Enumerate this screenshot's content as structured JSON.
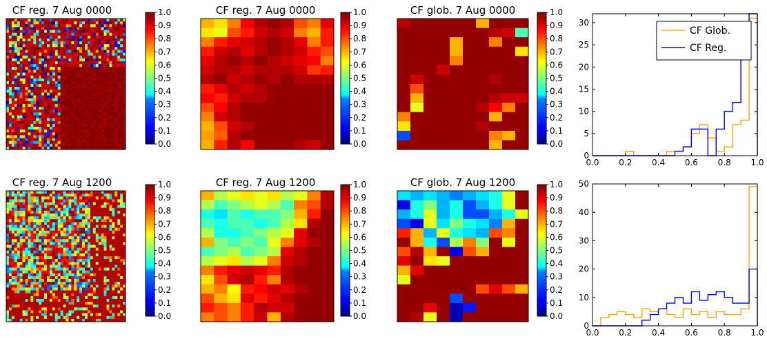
{
  "colors": {
    "glob": "#FFA500",
    "reg": "#0000FF",
    "colormap": "jet"
  },
  "colorbar_ticks": [
    "0.0",
    "0.1",
    "0.2",
    "0.3",
    "0.4",
    "0.5",
    "0.6",
    "0.7",
    "0.8",
    "0.9",
    "1.0"
  ],
  "rows": [
    {
      "titles": {
        "hires": "CF reg. 7 Aug 0000",
        "reg": "CF reg. 7 Aug 0000",
        "glob": "CF glob. 7 Aug 0000"
      },
      "reg_grid": [
        [
          0.7,
          0.65,
          0.75,
          0.88,
          0.95,
          0.98,
          0.95,
          0.8,
          0.75,
          0.9
        ],
        [
          0.65,
          0.6,
          0.8,
          0.85,
          0.92,
          0.95,
          0.92,
          0.75,
          0.7,
          0.85
        ],
        [
          0.75,
          0.85,
          0.9,
          0.92,
          0.95,
          0.98,
          0.95,
          0.9,
          0.75,
          0.85
        ],
        [
          0.85,
          0.92,
          0.95,
          0.9,
          0.95,
          0.98,
          0.95,
          0.92,
          0.85,
          0.8
        ],
        [
          0.9,
          0.95,
          0.98,
          0.95,
          0.98,
          0.95,
          0.92,
          0.9,
          0.88,
          0.75
        ],
        [
          0.92,
          0.95,
          0.95,
          0.92,
          0.95,
          0.95,
          0.95,
          0.92,
          0.82,
          0.85
        ],
        [
          0.95,
          0.98,
          0.92,
          0.95,
          0.98,
          0.95,
          0.98,
          0.95,
          0.95,
          0.95
        ],
        [
          0.85,
          0.9,
          0.95,
          0.92,
          0.95,
          0.98,
          0.98,
          0.98,
          0.98,
          0.98
        ],
        [
          0.88,
          0.85,
          0.92,
          0.95,
          0.95,
          0.98,
          0.98,
          0.98,
          0.98,
          0.98
        ],
        [
          0.8,
          0.88,
          0.95,
          0.98,
          0.98,
          0.98,
          0.98,
          0.98,
          0.98,
          0.98
        ],
        [
          0.75,
          0.92,
          0.95,
          0.98,
          0.98,
          0.98,
          0.98,
          0.98,
          0.98,
          0.98
        ],
        [
          0.7,
          0.8,
          0.92,
          0.95,
          0.98,
          0.98,
          0.98,
          0.98,
          0.98,
          0.98
        ],
        [
          0.72,
          0.78,
          0.95,
          0.98,
          0.98,
          0.98,
          0.98,
          0.98,
          0.98,
          0.98
        ],
        [
          0.7,
          0.85,
          0.95,
          0.88,
          0.98,
          0.98,
          0.98,
          0.95,
          0.92,
          0.98
        ]
      ],
      "glob_grid": [
        [
          0.95,
          0.98,
          0.98,
          0.98,
          0.98,
          0.98,
          0.7,
          0.98,
          0.98,
          0.98
        ],
        [
          0.98,
          0.98,
          0.98,
          0.98,
          0.98,
          0.98,
          0.98,
          0.95,
          0.92,
          0.45
        ],
        [
          0.98,
          0.98,
          0.98,
          0.98,
          0.7,
          0.98,
          0.98,
          0.75,
          0.98,
          0.98
        ],
        [
          0.98,
          0.98,
          0.98,
          0.98,
          0.7,
          0.98,
          0.98,
          0.98,
          0.98,
          0.65
        ],
        [
          0.98,
          0.98,
          0.98,
          0.98,
          0.75,
          0.98,
          0.98,
          0.98,
          0.98,
          0.98
        ],
        [
          0.98,
          0.98,
          0.98,
          0.92,
          0.98,
          0.98,
          0.98,
          0.98,
          0.98,
          0.98
        ],
        [
          0.98,
          0.92,
          0.98,
          0.98,
          0.98,
          0.98,
          0.98,
          0.95,
          0.98,
          0.98
        ],
        [
          0.98,
          0.8,
          0.98,
          0.98,
          0.98,
          0.98,
          0.98,
          0.98,
          0.98,
          0.98
        ],
        [
          0.98,
          0.7,
          0.98,
          0.98,
          0.98,
          0.98,
          0.98,
          0.95,
          0.92,
          0.92
        ],
        [
          0.98,
          0.6,
          0.98,
          0.98,
          0.98,
          0.98,
          0.95,
          0.88,
          0.75,
          0.98
        ],
        [
          0.75,
          0.98,
          0.98,
          0.98,
          0.98,
          0.98,
          0.98,
          0.7,
          0.98,
          0.98
        ],
        [
          0.65,
          0.98,
          0.98,
          0.98,
          0.98,
          0.98,
          0.95,
          0.98,
          0.98,
          0.98
        ],
        [
          0.2,
          0.98,
          0.98,
          0.98,
          0.98,
          0.98,
          0.98,
          0.75,
          0.7,
          0.98
        ],
        [
          0.98,
          0.98,
          0.98,
          0.98,
          0.98,
          0.98,
          0.98,
          0.7,
          0.98,
          0.98
        ]
      ],
      "hist": {
        "xlim": [
          0.0,
          1.0
        ],
        "ylim": [
          0,
          32
        ],
        "xticks": [
          "0.0",
          "0.2",
          "0.4",
          "0.6",
          "0.8",
          "1.0"
        ],
        "yticks": [
          "0",
          "5",
          "10",
          "15",
          "20",
          "25",
          "30"
        ],
        "bin_edges": [
          0.0,
          0.05,
          0.1,
          0.15,
          0.2,
          0.25,
          0.3,
          0.35,
          0.4,
          0.45,
          0.5,
          0.55,
          0.6,
          0.65,
          0.7,
          0.75,
          0.8,
          0.85,
          0.9,
          0.95,
          1.0
        ],
        "glob": [
          0,
          0,
          0,
          0,
          1,
          0,
          0,
          0,
          0,
          1,
          1,
          2,
          5,
          7,
          4,
          1,
          2,
          7,
          8,
          31
        ],
        "reg": [
          0,
          0,
          0,
          0,
          0,
          0,
          0,
          0,
          0,
          0,
          1,
          2,
          6,
          6,
          0,
          6,
          10,
          12,
          24,
          32
        ]
      }
    },
    {
      "titles": {
        "hires": "CF reg. 7 Aug 1200",
        "reg": "CF reg. 7 Aug 1200",
        "glob": "CF glob. 7 Aug 1200"
      },
      "reg_grid": [
        [
          0.7,
          0.55,
          0.6,
          0.65,
          0.6,
          0.65,
          0.55,
          0.6,
          0.75,
          0.95
        ],
        [
          0.55,
          0.45,
          0.5,
          0.55,
          0.6,
          0.55,
          0.45,
          0.75,
          0.8,
          0.95
        ],
        [
          0.4,
          0.35,
          0.45,
          0.4,
          0.45,
          0.45,
          0.5,
          0.7,
          0.85,
          0.98
        ],
        [
          0.45,
          0.4,
          0.45,
          0.45,
          0.4,
          0.45,
          0.55,
          0.65,
          0.95,
          0.98
        ],
        [
          0.55,
          0.4,
          0.4,
          0.45,
          0.5,
          0.55,
          0.6,
          0.9,
          0.98,
          0.98
        ],
        [
          0.7,
          0.5,
          0.45,
          0.5,
          0.45,
          0.6,
          0.75,
          0.9,
          0.95,
          0.98
        ],
        [
          0.45,
          0.5,
          0.55,
          0.45,
          0.5,
          0.55,
          0.9,
          0.95,
          0.98,
          0.98
        ],
        [
          0.55,
          0.6,
          0.65,
          0.55,
          0.6,
          0.75,
          0.92,
          0.95,
          0.98,
          0.98
        ],
        [
          0.75,
          0.85,
          0.9,
          0.92,
          0.9,
          0.85,
          0.95,
          0.98,
          0.98,
          0.98
        ],
        [
          0.65,
          0.8,
          0.92,
          0.95,
          0.85,
          0.75,
          0.95,
          0.98,
          0.98,
          0.98
        ],
        [
          0.7,
          0.75,
          0.62,
          0.85,
          0.88,
          0.92,
          0.9,
          0.95,
          0.98,
          0.98
        ],
        [
          0.8,
          0.7,
          0.65,
          0.9,
          0.85,
          0.9,
          0.95,
          0.98,
          0.98,
          0.98
        ],
        [
          0.85,
          0.8,
          0.75,
          0.85,
          0.95,
          0.92,
          0.92,
          0.98,
          0.98,
          0.98
        ],
        [
          0.75,
          0.8,
          0.75,
          0.85,
          0.92,
          0.7,
          0.95,
          0.98,
          0.98,
          0.98
        ]
      ],
      "glob_grid": [
        [
          0.35,
          0.3,
          0.35,
          0.3,
          0.25,
          0.3,
          0.35,
          0.4,
          0.6,
          0.98
        ],
        [
          0.1,
          0.4,
          0.5,
          0.3,
          0.4,
          0.2,
          0.3,
          0.4,
          0.6,
          0.98
        ],
        [
          0.3,
          0.4,
          0.6,
          0.3,
          0.4,
          0.2,
          0.2,
          0.3,
          0.4,
          0.6
        ],
        [
          0.2,
          0.1,
          0.6,
          0.35,
          0.5,
          0.4,
          0.35,
          0.25,
          0.7,
          0.98
        ],
        [
          0.85,
          0.7,
          0.3,
          0.6,
          0.4,
          0.35,
          0.3,
          0.8,
          0.75,
          0.98
        ],
        [
          0.98,
          0.7,
          0.4,
          0.2,
          0.55,
          0.75,
          0.5,
          0.98,
          0.6,
          0.98
        ],
        [
          0.8,
          0.95,
          0.7,
          0.98,
          0.1,
          0.8,
          0.7,
          0.98,
          0.98,
          0.98
        ],
        [
          0.9,
          0.98,
          0.65,
          0.6,
          0.98,
          0.98,
          0.98,
          0.98,
          0.98,
          0.98
        ],
        [
          0.7,
          0.9,
          0.98,
          0.98,
          0.98,
          0.98,
          0.98,
          0.98,
          0.98,
          0.98
        ],
        [
          0.6,
          0.98,
          0.98,
          0.98,
          0.98,
          0.98,
          0.98,
          0.98,
          0.98,
          0.98
        ],
        [
          0.98,
          0.98,
          0.98,
          0.98,
          0.98,
          0.98,
          0.8,
          0.9,
          0.8,
          0.7
        ],
        [
          0.98,
          0.98,
          0.98,
          0.98,
          0.2,
          0.98,
          0.98,
          0.98,
          0.98,
          0.98
        ],
        [
          0.98,
          0.98,
          0.9,
          0.98,
          0.05,
          0.15,
          0.98,
          0.98,
          0.98,
          0.98
        ],
        [
          0.98,
          0.95,
          0.6,
          0.98,
          0.05,
          0.98,
          0.98,
          0.98,
          0.98,
          0.98
        ]
      ],
      "hist": {
        "xlim": [
          0.0,
          1.0
        ],
        "ylim": [
          0,
          50
        ],
        "xticks": [
          "0.0",
          "0.2",
          "0.4",
          "0.6",
          "0.8",
          "1.0"
        ],
        "yticks": [
          "0",
          "10",
          "20",
          "30",
          "40",
          "50"
        ],
        "bin_edges": [
          0.0,
          0.05,
          0.1,
          0.15,
          0.2,
          0.25,
          0.3,
          0.35,
          0.4,
          0.45,
          0.5,
          0.55,
          0.6,
          0.65,
          0.7,
          0.75,
          0.8,
          0.85,
          0.9,
          0.95,
          1.0
        ],
        "glob": [
          0,
          3,
          4,
          5,
          4,
          3,
          6,
          5,
          6,
          4,
          3,
          6,
          4,
          5,
          3,
          5,
          4,
          4,
          6,
          49
        ],
        "reg": [
          0,
          0,
          0,
          0,
          0,
          0,
          2,
          4,
          6,
          8,
          10,
          8,
          12,
          9,
          11,
          12,
          10,
          8,
          8,
          20
        ]
      }
    }
  ],
  "legend": {
    "glob_label": "CF Glob.",
    "reg_label": "CF Reg."
  }
}
